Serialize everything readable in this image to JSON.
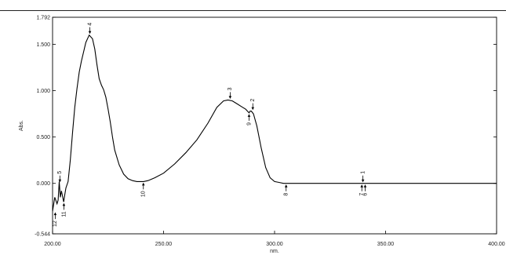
{
  "chart_data": {
    "type": "line",
    "title": "",
    "xlabel": "nm.",
    "ylabel": "Abs.",
    "xlim": [
      200.0,
      400.0
    ],
    "ylim": [
      -0.544,
      1.792
    ],
    "grid": false,
    "x_ticks": [
      "200.00",
      "250.00",
      "300.00",
      "350.00",
      "400.00"
    ],
    "y_ticks": [
      "-0.544",
      "0.000",
      "0.500",
      "1.000",
      "1.500",
      "1.792"
    ],
    "series": [
      {
        "name": "",
        "x": [
          200.0,
          201.0,
          202.0,
          202.5,
          203.0,
          203.5,
          204.0,
          205.0,
          205.5,
          206.0,
          207.0,
          208.0,
          209.0,
          210.0,
          211.0,
          212.0,
          213.0,
          214.0,
          215.0,
          216.5,
          218.0,
          219.0,
          220.0,
          221.0,
          222.0,
          223.0,
          224.0,
          225.0,
          226.0,
          227.0,
          228.0,
          230.0,
          232.0,
          234.0,
          236.0,
          238.0,
          240.0,
          241.0,
          243.0,
          246.0,
          250.0,
          255.0,
          260.0,
          265.0,
          270.0,
          274.0,
          277.0,
          279.0,
          281.0,
          283.0,
          285.0,
          287.0,
          288.5,
          289.0,
          289.5,
          290.5,
          292.0,
          294.0,
          296.0,
          298.0,
          300.0,
          302.0,
          304.0,
          305.0,
          310.0,
          330.0,
          340.0,
          360.0,
          380.0,
          400.0
        ],
        "y": [
          -0.3,
          -0.15,
          -0.22,
          -0.18,
          0.02,
          -0.15,
          -0.08,
          -0.2,
          -0.12,
          -0.05,
          0.02,
          0.25,
          0.55,
          0.82,
          1.02,
          1.2,
          1.32,
          1.42,
          1.52,
          1.6,
          1.56,
          1.45,
          1.28,
          1.13,
          1.06,
          1.01,
          0.93,
          0.8,
          0.66,
          0.5,
          0.36,
          0.2,
          0.1,
          0.05,
          0.03,
          0.02,
          0.02,
          0.02,
          0.03,
          0.06,
          0.11,
          0.21,
          0.33,
          0.47,
          0.65,
          0.82,
          0.89,
          0.9,
          0.89,
          0.86,
          0.83,
          0.8,
          0.76,
          0.78,
          0.78,
          0.75,
          0.62,
          0.38,
          0.17,
          0.06,
          0.02,
          0.01,
          0.0,
          0.0,
          0.0,
          0.0,
          0.0,
          0.0,
          0.0,
          0.0
        ]
      }
    ],
    "peak_labels": [
      {
        "label": "1",
        "x": 339.8,
        "y": 0.0,
        "side": "above"
      },
      {
        "label": "2",
        "x": 290.2,
        "y": 0.78,
        "side": "above"
      },
      {
        "label": "3",
        "x": 280.0,
        "y": 0.9,
        "side": "above"
      },
      {
        "label": "4",
        "x": 216.8,
        "y": 1.6,
        "side": "above"
      },
      {
        "label": "5",
        "x": 203.3,
        "y": 0.0,
        "side": "above"
      },
      {
        "label": "6",
        "x": 340.8,
        "y": 0.0,
        "side": "below"
      },
      {
        "label": "7",
        "x": 339.3,
        "y": 0.0,
        "side": "below"
      },
      {
        "label": "8",
        "x": 305.2,
        "y": 0.0,
        "side": "below"
      },
      {
        "label": "9",
        "x": 288.5,
        "y": 0.76,
        "side": "below"
      },
      {
        "label": "10",
        "x": 240.9,
        "y": 0.02,
        "side": "below"
      },
      {
        "label": "11",
        "x": 205.1,
        "y": -0.2,
        "side": "below"
      },
      {
        "label": "12",
        "x": 201.2,
        "y": -0.3,
        "side": "below"
      }
    ]
  }
}
